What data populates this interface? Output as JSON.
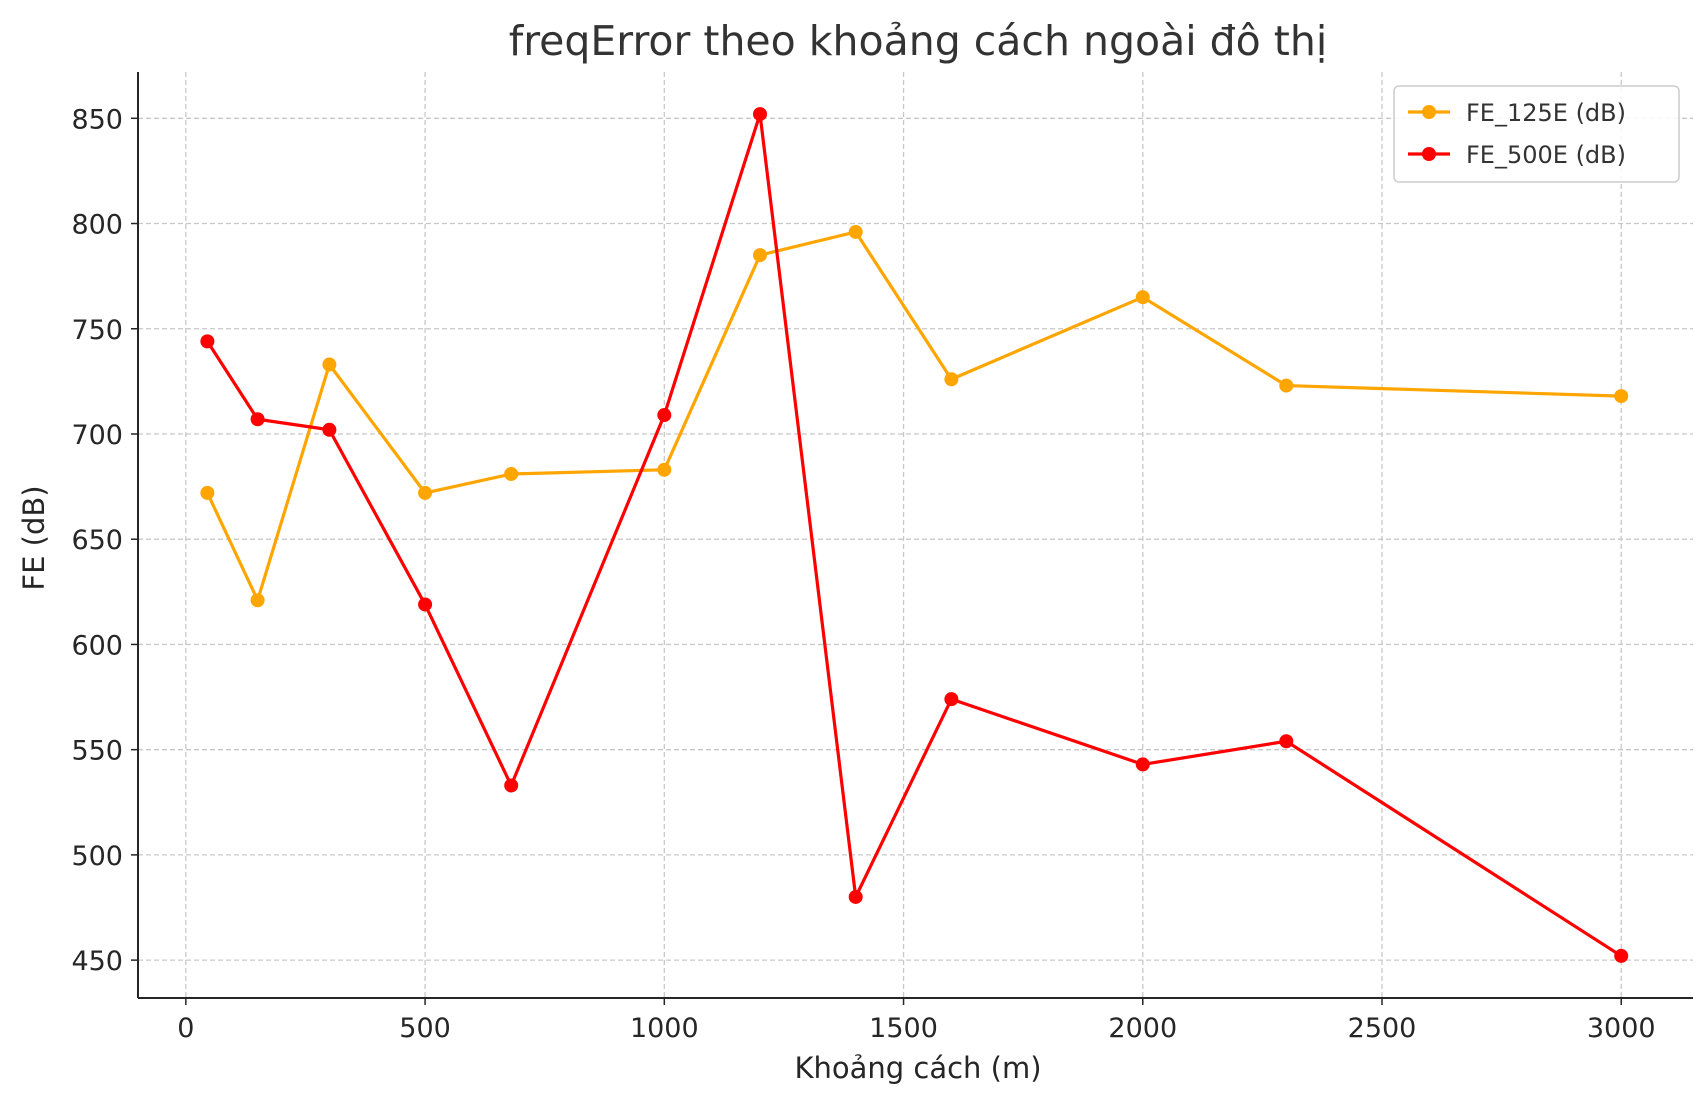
{
  "chart_data": {
    "type": "line",
    "title": "freqError theo khoảng cách ngoài đô thị",
    "xlabel": "Khoảng cách (m)",
    "ylabel": "FE (dB)",
    "xlim": [
      -100,
      3150
    ],
    "ylim": [
      432,
      872
    ],
    "xticks": [
      0,
      500,
      1000,
      1500,
      2000,
      2500,
      3000
    ],
    "yticks": [
      450,
      500,
      550,
      600,
      650,
      700,
      750,
      800,
      850
    ],
    "grid": true,
    "legend_position": "top-right",
    "x": [
      45,
      150,
      300,
      500,
      680,
      1000,
      1200,
      1400,
      1600,
      2000,
      2300,
      3000
    ],
    "series": [
      {
        "name": "FE_125E (dB)",
        "color": "#ffa500",
        "values": [
          672,
          621,
          733,
          672,
          681,
          683,
          785,
          796,
          726,
          765,
          723,
          718
        ]
      },
      {
        "name": "FE_500E (dB)",
        "color": "#ff0000",
        "values": [
          744,
          707,
          702,
          619,
          533,
          709,
          852,
          480,
          574,
          543,
          554,
          452
        ]
      }
    ]
  }
}
